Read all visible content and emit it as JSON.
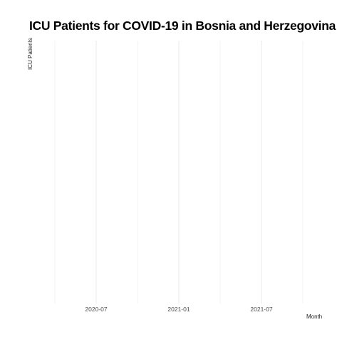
{
  "chart_data": {
    "type": "line",
    "title": "ICU Patients for COVID-19 in Bosnia and Herzegovina",
    "xlabel": "Month",
    "ylabel": "ICU Patients",
    "x_ticks": [
      "2020-07",
      "2021-01",
      "2021-07"
    ],
    "x_range": [
      "2020-04",
      "2021-10"
    ],
    "series": [],
    "grid": true,
    "grid_color": "#ebebeb",
    "tick_color": "#4d4d4d",
    "background": "#ffffff"
  }
}
